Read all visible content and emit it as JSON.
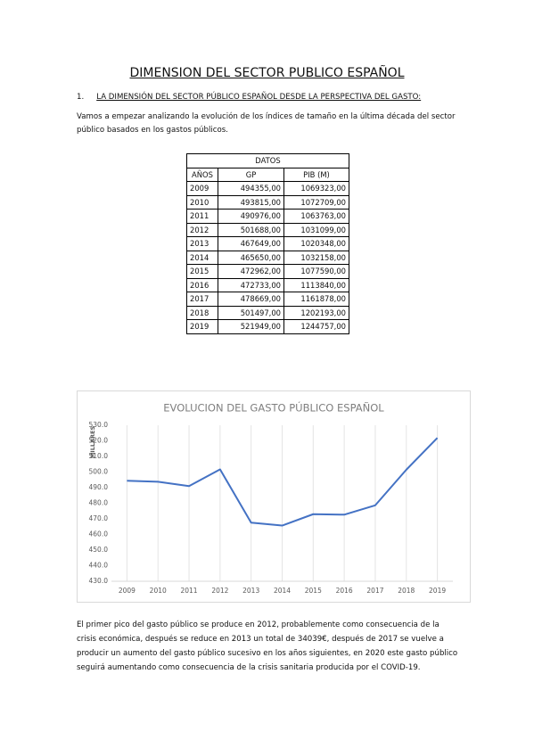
{
  "title": "DIMENSION DEL SECTOR PUBLICO ESPAÑOL",
  "section": {
    "number": "1.",
    "heading": "LA DIMENSIÓN DEL SECTOR PÚBLICO ESPAÑOL DESDE LA PERSPECTIVA DEL GASTO:"
  },
  "intro": "Vamos a empezar analizando la evolución de los índices de tamaño en la última década del sector público basados en los gastos públicos.",
  "table": {
    "caption": "DATOS",
    "header": [
      "AÑOS",
      "GP",
      "PIB (M)"
    ],
    "rows": [
      [
        "2009",
        "494355,00",
        "1069323,00"
      ],
      [
        "2010",
        "493815,00",
        "1072709,00"
      ],
      [
        "2011",
        "490976,00",
        "1063763,00"
      ],
      [
        "2012",
        "501688,00",
        "1031099,00"
      ],
      [
        "2013",
        "467649,00",
        "1020348,00"
      ],
      [
        "2014",
        "465650,00",
        "1032158,00"
      ],
      [
        "2015",
        "472962,00",
        "1077590,00"
      ],
      [
        "2016",
        "472733,00",
        "1113840,00"
      ],
      [
        "2017",
        "478669,00",
        "1161878,00"
      ],
      [
        "2018",
        "501497,00",
        "1202193,00"
      ],
      [
        "2019",
        "521949,00",
        "1244757,00"
      ]
    ]
  },
  "chart_data": {
    "type": "line",
    "title": "EVOLUCION DEL GASTO PÚBLICO ESPAÑOL",
    "y_label": "MILLARES",
    "categories": [
      "2009",
      "2010",
      "2011",
      "2012",
      "2013",
      "2014",
      "2015",
      "2016",
      "2017",
      "2018",
      "2019"
    ],
    "values": [
      494.4,
      493.8,
      491.0,
      501.7,
      467.6,
      465.7,
      473.0,
      472.7,
      478.7,
      501.5,
      521.9
    ],
    "color": "#4472c4",
    "ylim": [
      430,
      530
    ],
    "yticks": [
      {
        "value": 430,
        "label": "430.0"
      },
      {
        "value": 440,
        "label": "440.0"
      },
      {
        "value": 450,
        "label": "450.0"
      },
      {
        "value": 460,
        "label": "460.0"
      },
      {
        "value": 470,
        "label": "470.0"
      },
      {
        "value": 480,
        "label": "480.0"
      },
      {
        "value": 490,
        "label": "490.0"
      },
      {
        "value": 500,
        "label": "500.0"
      },
      {
        "value": 510,
        "label": "510.0"
      },
      {
        "value": 520,
        "label": "520.0"
      },
      {
        "value": 530,
        "label": "530.0"
      }
    ],
    "grid": true
  },
  "conclusion": "El primer pico del gasto público se produce en 2012, probablemente como consecuencia de la crisis económica, después se reduce en 2013 un total de 34039€, después de 2017 se vuelve a producir un aumento del gasto público sucesivo en los años siguientes, en 2020 este gasto público seguirá aumentando como consecuencia de la crisis sanitaria producida por el COVID-19."
}
